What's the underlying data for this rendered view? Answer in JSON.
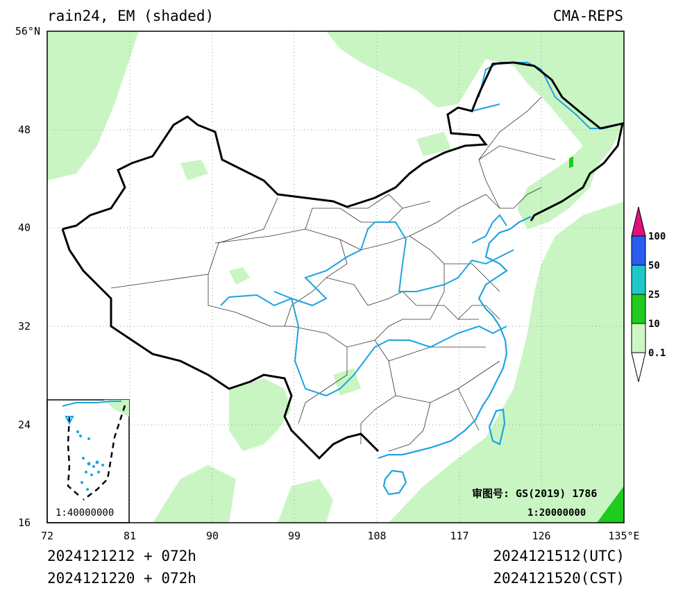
{
  "header": {
    "title": "rain24, EM (shaded)",
    "model": "CMA-REPS"
  },
  "map": {
    "x_ticks": [
      "72",
      "81",
      "90",
      "99",
      "108",
      "117",
      "126",
      "135°E"
    ],
    "y_ticks": [
      "16",
      "24",
      "32",
      "40",
      "48",
      "56°N"
    ],
    "lon_range": [
      72,
      135
    ],
    "lat_range": [
      16,
      56
    ],
    "approval": "审图号: GS(2019) 1786",
    "scale": "1:20000000",
    "inset_scale": "1:40000000"
  },
  "legend": {
    "labels": [
      "0.1",
      "10",
      "25",
      "50",
      "100"
    ],
    "colors": [
      "#ffffff",
      "#ccf7c4",
      "#1ecb1e",
      "#1ec8c8",
      "#2a5cf0",
      "#e0107a"
    ]
  },
  "footer": {
    "init_utc": "2024121212 + 072h",
    "init_cst": "2024121220 + 072h",
    "valid_utc": "2024121512(UTC)",
    "valid_cst": "2024121520(CST)"
  }
}
